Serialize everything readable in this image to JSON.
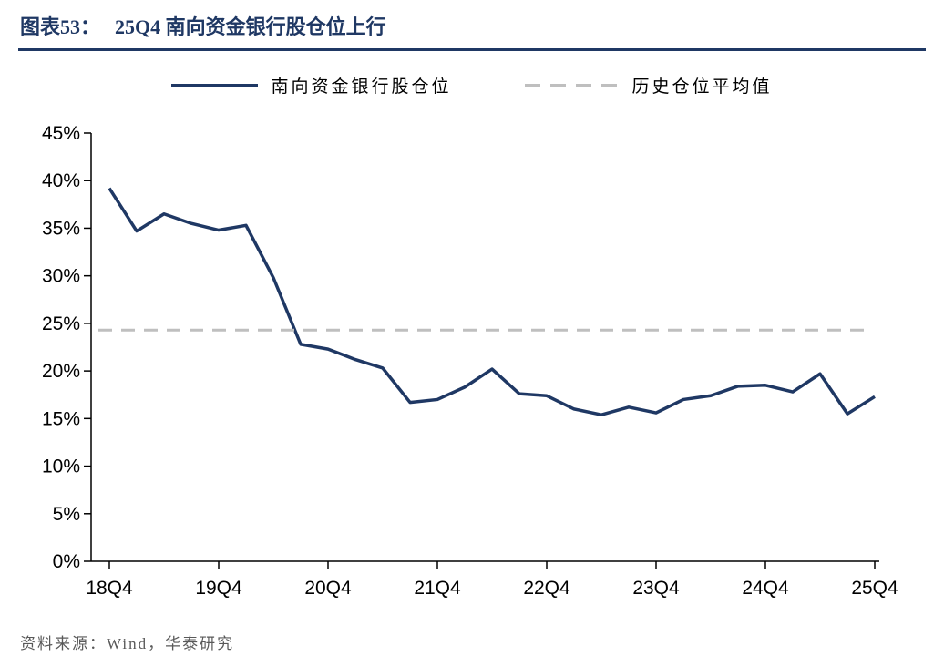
{
  "header": {
    "figure_label": "图表53：",
    "figure_title": "25Q4 南向资金银行股仓位上行"
  },
  "legend": {
    "series": {
      "label": "南向资金银行股仓位",
      "color": "#1F3864"
    },
    "average": {
      "label": "历史仓位平均值",
      "color": "#BFBFBF"
    }
  },
  "footer": {
    "source": "资料来源：Wind，华泰研究"
  },
  "colors": {
    "accent": "#1F3864",
    "muted": "#BFBFBF",
    "axis": "#000000",
    "source_text": "#595959"
  },
  "chart_data": {
    "type": "line",
    "title": "25Q4 南向资金银行股仓位上行",
    "x": [
      "18Q4",
      "19Q1",
      "19Q2",
      "19Q3",
      "19Q4",
      "20Q1",
      "20Q2",
      "20Q3",
      "20Q4",
      "21Q1",
      "21Q2",
      "21Q3",
      "21Q4",
      "22Q1",
      "22Q2",
      "22Q3",
      "22Q4",
      "23Q1",
      "23Q2",
      "23Q3",
      "23Q4",
      "24Q1",
      "24Q2",
      "24Q3",
      "24Q4",
      "25Q1",
      "25Q2",
      "25Q3",
      "25Q4"
    ],
    "series": [
      {
        "name": "南向资金银行股仓位",
        "style": "solid",
        "color": "#1F3864",
        "values": [
          39.2,
          34.7,
          36.5,
          35.5,
          34.8,
          35.3,
          29.8,
          22.8,
          22.3,
          21.2,
          20.3,
          16.7,
          17.0,
          18.3,
          20.2,
          17.6,
          17.4,
          16.0,
          15.4,
          16.2,
          15.6,
          17.0,
          17.4,
          18.4,
          18.5,
          17.8,
          19.7,
          15.5,
          17.3
        ]
      },
      {
        "name": "历史仓位平均值",
        "style": "dashed",
        "color": "#BFBFBF",
        "constant": 24.3
      }
    ],
    "ylim": [
      0,
      45
    ],
    "ytick_step": 5,
    "ytick_suffix": "%",
    "xticks": [
      "18Q4",
      "19Q4",
      "20Q4",
      "21Q4",
      "22Q4",
      "23Q4",
      "24Q4",
      "25Q4"
    ],
    "grid": false,
    "legend_position": "top"
  }
}
